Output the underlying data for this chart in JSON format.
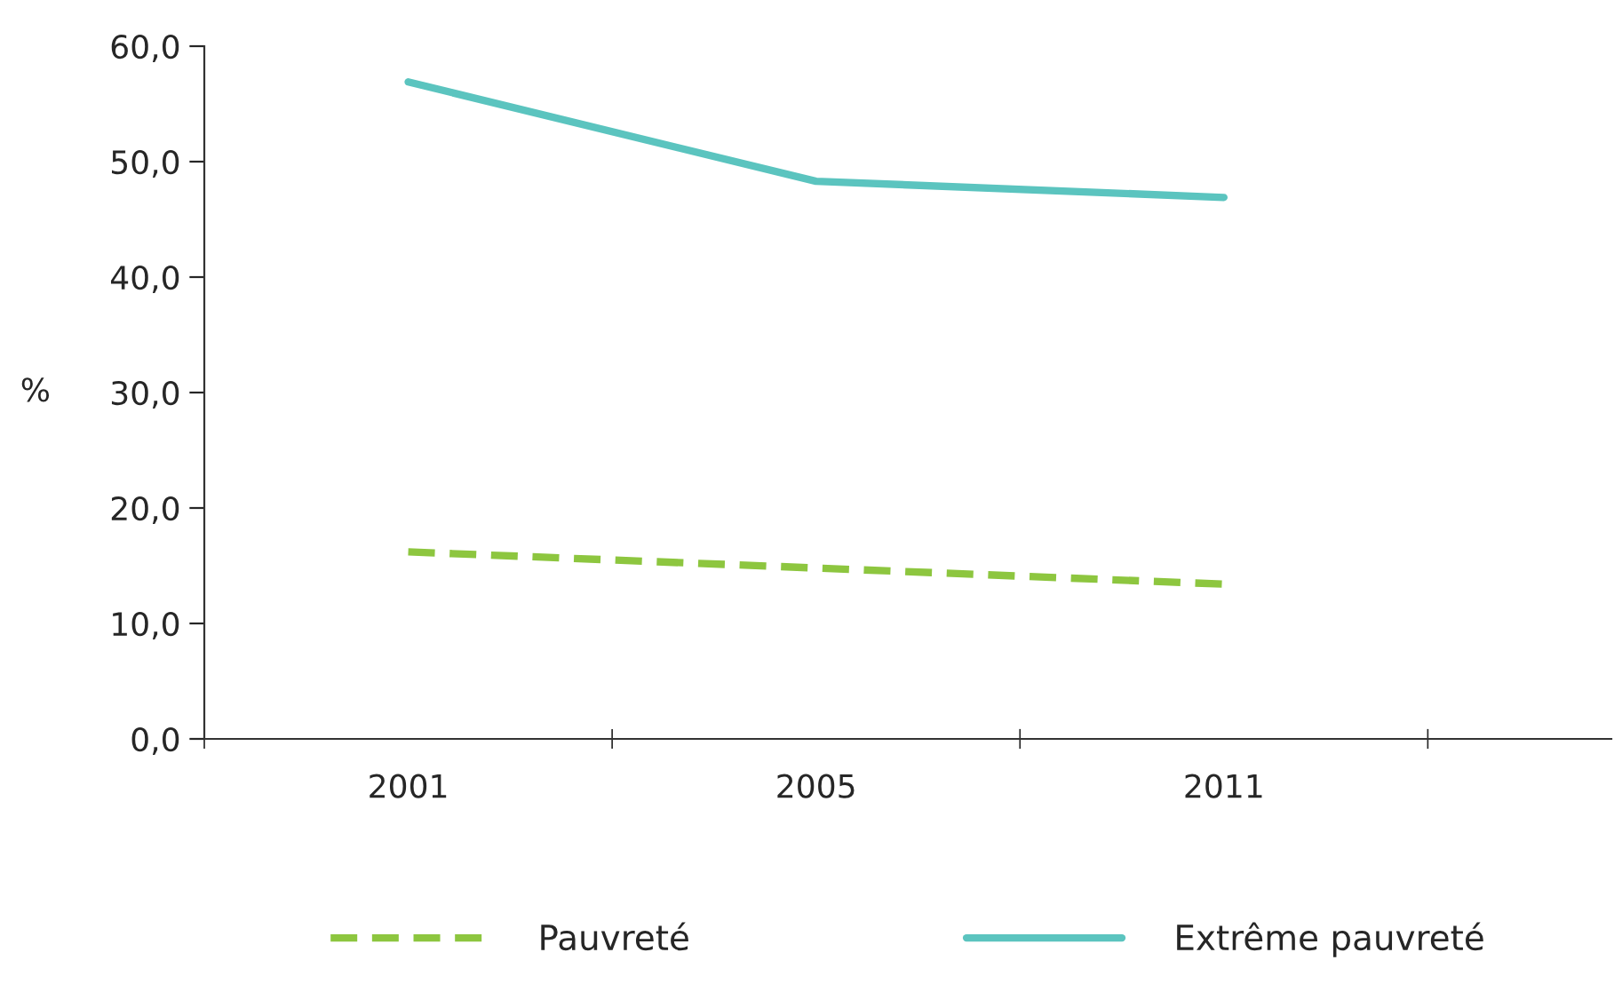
{
  "chart_data": {
    "type": "line",
    "ylabel": "%",
    "categories": [
      "2001",
      "2005",
      "2011"
    ],
    "series": [
      {
        "name": "Pauvreté",
        "color": "#8dc63f",
        "values": [
          16.2,
          14.8,
          13.4
        ],
        "line_style": "dashed"
      },
      {
        "name": "Extrême pauvreté",
        "color": "#5bc4bf",
        "values": [
          56.9,
          48.3,
          46.9
        ],
        "line_style": "solid"
      }
    ],
    "ylim": [
      0,
      60
    ],
    "yticks": [
      {
        "value": 0,
        "label": "0,0"
      },
      {
        "value": 10,
        "label": "10,0"
      },
      {
        "value": 20,
        "label": "20,0"
      },
      {
        "value": 30,
        "label": "30,0"
      },
      {
        "value": 40,
        "label": "40,0"
      },
      {
        "value": 50,
        "label": "50,0"
      },
      {
        "value": 60,
        "label": "60,0"
      }
    ],
    "grid": false,
    "legend": "bottom",
    "marker": "none"
  }
}
